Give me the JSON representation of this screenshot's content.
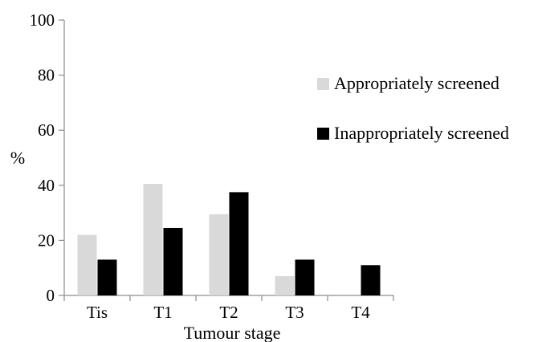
{
  "chart_data": {
    "type": "bar",
    "categories": [
      "Tis",
      "T1",
      "T2",
      "T3",
      "T4"
    ],
    "series": [
      {
        "name": "Appropriately screened",
        "color": "#d9d9d9",
        "values": [
          22,
          40.5,
          29.5,
          7,
          0
        ]
      },
      {
        "name": "Inappropriately screened",
        "color": "#000000",
        "values": [
          13,
          24.5,
          37.5,
          13,
          11
        ]
      }
    ],
    "title": "",
    "xlabel": "Tumour stage",
    "ylabel": "%",
    "ylim": [
      0,
      100
    ],
    "yticks": [
      0,
      20,
      40,
      60,
      80,
      100
    ],
    "grid": false,
    "legend_position": "right"
  }
}
